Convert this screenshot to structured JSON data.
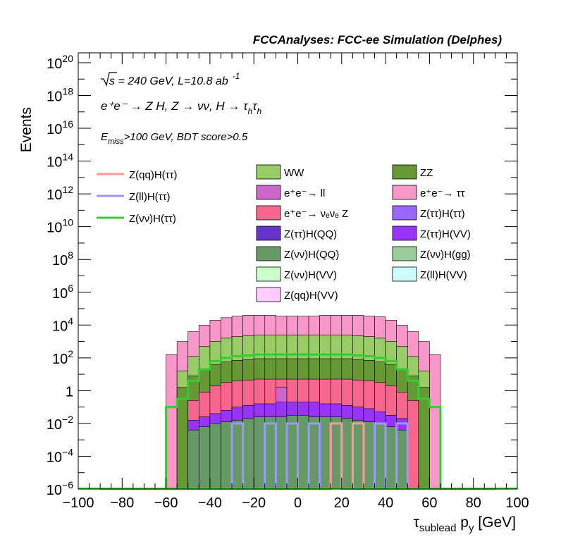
{
  "chart_data": {
    "type": "histogram-stacked",
    "title": "FCCAnalyses: FCC-ee Simulation (Delphes)",
    "xlabel_main": "τ",
    "xlabel_sub": "sublead",
    "xlabel_tail": " p",
    "xlabel_tail_sub": "y",
    "xlabel_unit": " [GeV]",
    "ylabel": "Events",
    "xlim": [
      -100,
      100
    ],
    "ylog": true,
    "ylim_log10": [
      -6,
      20.6
    ],
    "x_ticks": [
      "−100",
      "−80",
      "−60",
      "−40",
      "−20",
      "0",
      "20",
      "40",
      "60",
      "80",
      "100"
    ],
    "y_ticks": [
      {
        "exp": -6,
        "label_base": "10",
        "label_exp": "−6"
      },
      {
        "exp": -4,
        "label_base": "10",
        "label_exp": "−4"
      },
      {
        "exp": -2,
        "label_base": "10",
        "label_exp": "−2"
      },
      {
        "exp": 0,
        "label_base": "1",
        "label_exp": ""
      },
      {
        "exp": 2,
        "label_base": "10",
        "label_exp": "2"
      },
      {
        "exp": 4,
        "label_base": "10",
        "label_exp": "4"
      },
      {
        "exp": 6,
        "label_base": "10",
        "label_exp": "6"
      },
      {
        "exp": 8,
        "label_base": "10",
        "label_exp": "8"
      },
      {
        "exp": 10,
        "label_base": "10",
        "label_exp": "10"
      },
      {
        "exp": 12,
        "label_base": "10",
        "label_exp": "12"
      },
      {
        "exp": 14,
        "label_base": "10",
        "label_exp": "14"
      },
      {
        "exp": 16,
        "label_base": "10",
        "label_exp": "16"
      },
      {
        "exp": 18,
        "label_base": "10",
        "label_exp": "18"
      },
      {
        "exp": 20,
        "label_base": "10",
        "label_exp": "20"
      }
    ],
    "annotations": {
      "sqrt_s": "s = 240 GeV, L=10.8 ab",
      "lumi_exp": "-1",
      "process": "e⁺e⁻ → Z H, Z → νν, H → τ",
      "process_sub1": "h",
      "process_tau2": "τ",
      "process_sub2": "h",
      "emiss_E": "E",
      "emiss_sub": "miss",
      "emiss_rest": ">100 GeV, BDT score>0.5"
    },
    "stack_log10": [
      {
        "name": "e+e- → ττ",
        "color": "#f898c8",
        "values": [
          -6,
          -6,
          -6,
          -6,
          -6,
          -6,
          2.2,
          3.0,
          3.6,
          4.0,
          4.3,
          4.45,
          4.55,
          4.6,
          4.6,
          4.6,
          4.55,
          4.55,
          4.55,
          4.55,
          4.6,
          4.6,
          4.6,
          4.6,
          4.55,
          4.5,
          4.3,
          4.0,
          3.6,
          3.0,
          2.2,
          -6,
          -6,
          -6,
          -6,
          -6
        ]
      },
      {
        "name": "WW",
        "color": "#99cc66",
        "values": [
          -6,
          -6,
          -6,
          -6,
          -6,
          -6,
          -6,
          1.2,
          2.1,
          2.7,
          3.0,
          3.2,
          3.3,
          3.35,
          3.4,
          3.4,
          3.4,
          3.4,
          3.4,
          3.4,
          3.4,
          3.4,
          3.4,
          3.35,
          3.3,
          3.2,
          3.0,
          2.7,
          2.1,
          1.2,
          -6,
          -6,
          -6,
          -6,
          -6,
          -6
        ]
      },
      {
        "name": "ZZ",
        "color": "#669933",
        "values": [
          -6,
          -6,
          -6,
          -6,
          -6,
          -6,
          -6,
          0.2,
          0.9,
          1.3,
          1.6,
          1.75,
          1.85,
          1.9,
          1.95,
          1.95,
          1.95,
          1.95,
          1.95,
          1.95,
          1.95,
          1.95,
          1.95,
          1.9,
          1.85,
          1.75,
          1.6,
          1.3,
          0.9,
          0.2,
          -6,
          -6,
          -6,
          -6,
          -6,
          -6
        ]
      },
      {
        "name": "e+e- → νeνe Z",
        "color": "#f86690",
        "values": [
          -6,
          -6,
          -6,
          -6,
          -6,
          -6,
          -6,
          -6,
          -0.6,
          -0.1,
          0.3,
          0.5,
          0.6,
          0.65,
          0.7,
          0.7,
          0.7,
          0.7,
          0.7,
          0.7,
          0.7,
          0.7,
          0.7,
          0.65,
          0.6,
          0.5,
          0.3,
          -0.1,
          -0.6,
          -6,
          -6,
          -6,
          -6,
          -6,
          -6,
          -6
        ]
      },
      {
        "name": "e+e- → ll",
        "color": "#cc66cc",
        "values": [
          -6,
          -6,
          -6,
          -6,
          -6,
          -6,
          -6,
          -6,
          -6,
          -6,
          -6,
          -6,
          -6,
          -6,
          -6,
          -6,
          0.2,
          -6,
          -6,
          -6,
          -6,
          -6,
          -6,
          -6,
          -6,
          -6,
          -6,
          -6,
          -6,
          -6,
          -6,
          -6,
          -6,
          -6,
          -6,
          -6
        ]
      },
      {
        "name": "Z(ττ)H(VV)",
        "color": "#9933ff",
        "values": [
          -6,
          -6,
          -6,
          -6,
          -6,
          -6,
          -6,
          -6,
          -1.8,
          -1.6,
          -1.4,
          -1.2,
          -1.0,
          -0.9,
          -0.8,
          -0.8,
          -0.7,
          -0.7,
          -0.7,
          -0.7,
          -0.8,
          -0.8,
          -0.9,
          -1.0,
          -1.1,
          -1.3,
          -1.5,
          -1.7,
          -6,
          -6,
          -6,
          -6,
          -6,
          -6,
          -6,
          -6
        ]
      },
      {
        "name": "Z(νν)H(QQ)",
        "color": "#669966",
        "values": [
          -6,
          -6,
          -6,
          -6,
          -6,
          -6,
          -6,
          -6,
          -2.4,
          -2.2,
          -2.0,
          -1.9,
          -1.8,
          -1.7,
          -1.6,
          -1.6,
          -1.6,
          -1.5,
          -1.5,
          -1.6,
          -1.6,
          -1.6,
          -1.7,
          -1.8,
          -1.9,
          -2.0,
          -2.2,
          -2.4,
          -6,
          -6,
          -6,
          -6,
          -6,
          -6,
          -6,
          -6
        ]
      },
      {
        "name": "Z(νν)H(ττ)",
        "color": "#33cc33",
        "outline": true,
        "values": [
          -6,
          -6,
          -6,
          -6,
          -6,
          -6,
          -1.0,
          -0.5,
          0.6,
          1.3,
          1.8,
          2.0,
          2.1,
          2.15,
          2.2,
          2.2,
          2.2,
          2.2,
          2.2,
          2.2,
          2.2,
          2.2,
          2.2,
          2.15,
          2.1,
          2.0,
          1.8,
          1.3,
          0.6,
          -0.5,
          -1.0,
          -6,
          -6,
          -6,
          -6,
          -6
        ]
      },
      {
        "name": "Z(ll)H(ττ)",
        "color": "#9999ff",
        "outline": true,
        "values": [
          -6,
          -6,
          -6,
          -6,
          -6,
          -6,
          -6,
          -6,
          -6,
          -6,
          -6,
          -6,
          -2.0,
          -6,
          -6,
          -2.0,
          -6,
          -2.0,
          -6,
          -2.0,
          -6,
          -2.0,
          -6,
          -6,
          -6,
          -2.0,
          -6,
          -2.0,
          -6,
          -6,
          -6,
          -6,
          -6,
          -6,
          -6,
          -6
        ]
      },
      {
        "name": "Z(qq)H(ττ)",
        "color": "#ff9999",
        "outline": true,
        "values": [
          -6,
          -6,
          -6,
          -6,
          -6,
          -6,
          -6,
          -6,
          -6,
          -6,
          -6,
          -6,
          -6,
          -6,
          -6,
          -6,
          -6,
          -6,
          -6,
          -6,
          -6,
          -2.0,
          -6,
          -2.0,
          -6,
          -6,
          -6,
          -6,
          -6,
          -6,
          -6,
          -6,
          -6,
          -6,
          -6,
          -6
        ]
      }
    ],
    "legend_left": [
      {
        "label": "Z(qq)H(ττ)",
        "color": "#ff9999"
      },
      {
        "label": "Z(ll)H(ττ)",
        "color": "#9999ff"
      },
      {
        "label": "Z(νν)H(ττ)",
        "color": "#33cc33"
      }
    ],
    "legend_fill": [
      {
        "label": "WW",
        "color": "#99cc66"
      },
      {
        "label": "ZZ",
        "color": "#669933"
      },
      {
        "label": "e⁺e⁻→ ll",
        "color": "#cc66cc"
      },
      {
        "label": "e⁺e⁻→ ττ",
        "color": "#f898c8"
      },
      {
        "label": "e⁺e⁻→ νₑνₑ Z",
        "color": "#f86690"
      },
      {
        "label": "Z(ττ)H(ττ)",
        "color": "#9966ff"
      },
      {
        "label": "Z(ττ)H(QQ)",
        "color": "#6633cc"
      },
      {
        "label": "Z(ττ)H(VV)",
        "color": "#9933ff"
      },
      {
        "label": "Z(νν)H(QQ)",
        "color": "#669966"
      },
      {
        "label": "Z(νν)H(gg)",
        "color": "#99cc99"
      },
      {
        "label": "Z(νν)H(VV)",
        "color": "#ccffcc"
      },
      {
        "label": "Z(ll)H(VV)",
        "color": "#ccffff"
      },
      {
        "label": "Z(qq)H(VV)",
        "color": "#ffccff"
      }
    ]
  }
}
